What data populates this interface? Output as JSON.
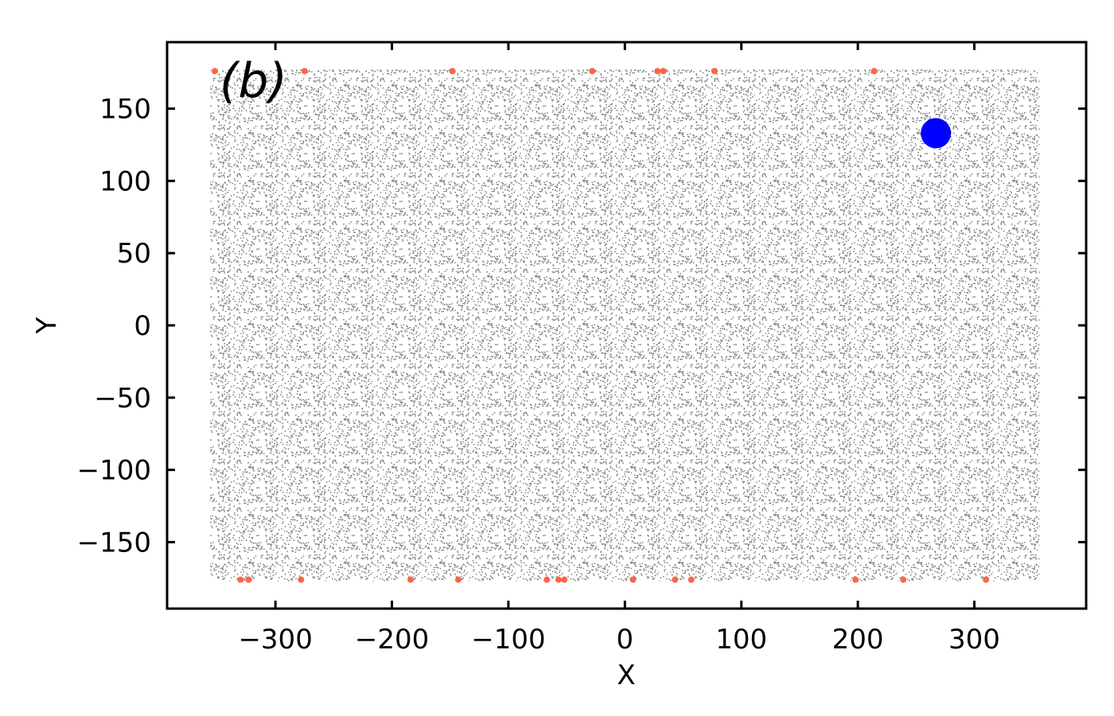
{
  "chart_data": {
    "type": "scatter",
    "annotation": "(b)",
    "xlabel": "X",
    "ylabel": "Y",
    "xlim": [
      -393,
      396
    ],
    "ylim": [
      -196,
      196
    ],
    "xticks": [
      {
        "value": -300,
        "label": "−300"
      },
      {
        "value": -200,
        "label": "−200"
      },
      {
        "value": -100,
        "label": "−100"
      },
      0,
      100,
      200,
      300
    ],
    "yticks": [
      {
        "value": -150,
        "label": "−150"
      },
      {
        "value": -100,
        "label": "−100"
      },
      {
        "value": -50,
        "label": "−50"
      },
      0,
      50,
      100,
      150
    ],
    "background_points": {
      "color": "#808080",
      "x_range": [
        -356,
        356
      ],
      "y_range": [
        -177,
        177
      ]
    },
    "series": [
      {
        "color": "#ff6347",
        "size": 4,
        "x": [
          -352,
          -275,
          -148,
          -28,
          28,
          33,
          77,
          214,
          -330,
          -323,
          -278,
          -184,
          -143,
          -67,
          -57,
          -52,
          7,
          43,
          57,
          198,
          239,
          310
        ],
        "values": [
          176,
          176,
          176,
          176,
          176,
          176,
          176,
          176,
          -176,
          -176,
          -176,
          -176,
          -176,
          -176,
          -176,
          -176,
          -176,
          -176,
          -176,
          -176,
          -176,
          -176
        ]
      },
      {
        "color": "#0000ff",
        "size": 19,
        "x": [
          267
        ],
        "values": [
          133
        ]
      }
    ]
  }
}
